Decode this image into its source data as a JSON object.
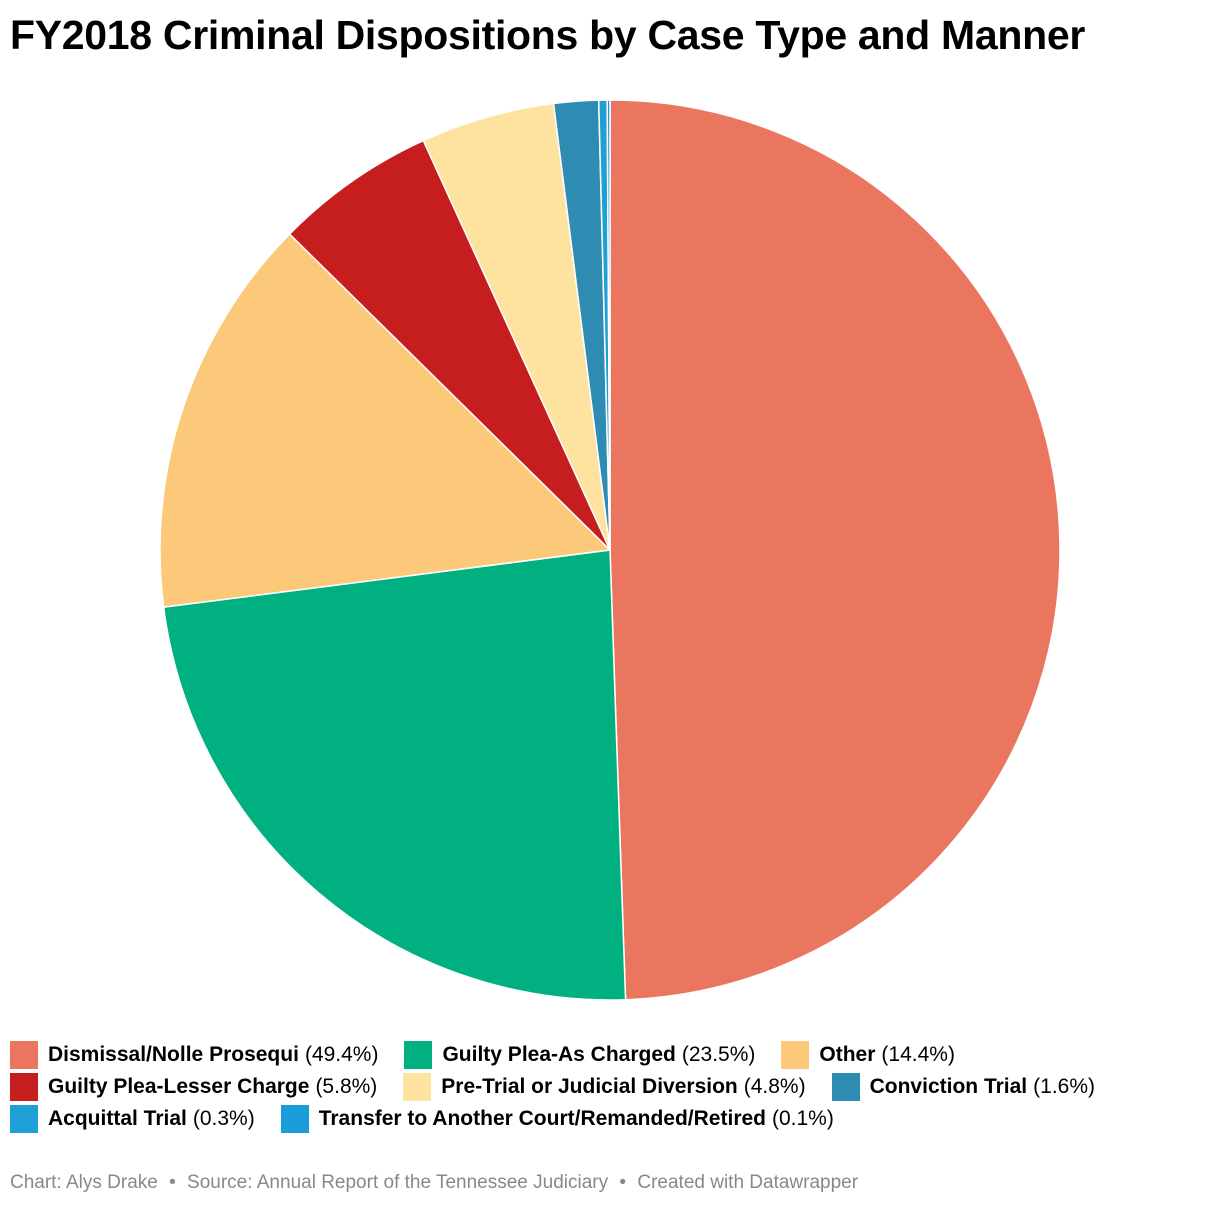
{
  "chart_data": {
    "type": "pie",
    "title": "FY2018 Criminal Dispositions by Case Type and Manner",
    "slices": [
      {
        "label": "Dismissal/Nolle Prosequi",
        "value": 49.4,
        "value_label": "(49.4%)",
        "color": "#eb7660"
      },
      {
        "label": "Guilty Plea-As Charged",
        "value": 23.5,
        "value_label": "(23.5%)",
        "color": "#00b080"
      },
      {
        "label": "Other",
        "value": 14.4,
        "value_label": "(14.4%)",
        "color": "#fcc97a"
      },
      {
        "label": "Guilty Plea-Lesser Charge",
        "value": 5.8,
        "value_label": "(5.8%)",
        "color": "#c61d1f"
      },
      {
        "label": "Pre-Trial or Judicial Diversion",
        "value": 4.8,
        "value_label": "(4.8%)",
        "color": "#fee2a0"
      },
      {
        "label": "Conviction Trial",
        "value": 1.6,
        "value_label": "(1.6%)",
        "color": "#2e8cb3"
      },
      {
        "label": "Acquittal Trial",
        "value": 0.3,
        "value_label": "(0.3%)",
        "color": "#1ea0d6"
      },
      {
        "label": "Transfer to Another Court/Remanded/Retired",
        "value": 0.1,
        "value_label": "(0.1%)",
        "color": "#1a9cd8"
      }
    ],
    "legend_placement": "bottom"
  },
  "footer": {
    "chart_credit": "Chart: Alys Drake",
    "source": "Source: Annual Report of the Tennessee Judiciary",
    "created_with": "Created with Datawrapper",
    "separator": "•"
  }
}
